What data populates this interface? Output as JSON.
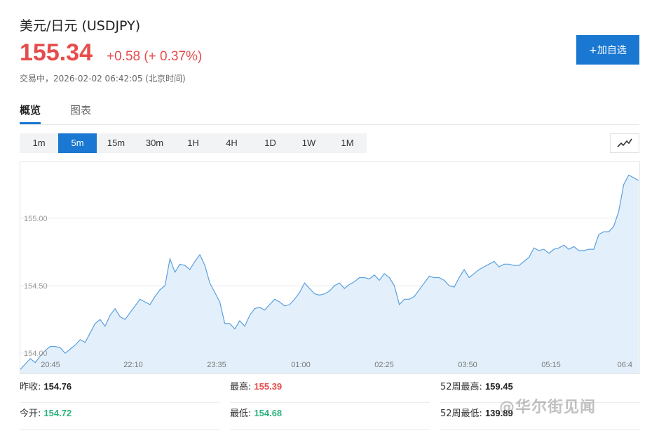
{
  "header": {
    "title": "美元/日元  (USDJPY)",
    "price": "155.34",
    "change": "+0.58 (+ 0.37%)",
    "status": "交易中，2026-02-02 06:42:05 (北京时间)",
    "watch_label": "+加自选"
  },
  "tabs": [
    {
      "label": "概览",
      "active": true
    },
    {
      "label": "图表",
      "active": false
    }
  ],
  "intervals": [
    "1m",
    "5m",
    "15m",
    "30m",
    "1H",
    "4H",
    "1D",
    "1W",
    "1M"
  ],
  "active_interval": "5m",
  "chart_type_icon": "line-chart-icon",
  "chart_data": {
    "type": "area",
    "ylim": [
      153.85,
      155.4
    ],
    "y_ticks": [
      {
        "value": 154.0,
        "label": "154.00"
      },
      {
        "value": 154.5,
        "label": "154.50"
      },
      {
        "value": 155.0,
        "label": "155.00"
      }
    ],
    "x_ticks": [
      "20:45",
      "22:10",
      "23:35",
      "01:00",
      "02:25",
      "03:50",
      "05:15",
      "06:4"
    ],
    "values": [
      153.88,
      153.92,
      153.96,
      153.93,
      153.98,
      154.02,
      154.05,
      154.05,
      154.04,
      154.0,
      154.03,
      154.06,
      154.1,
      154.08,
      154.15,
      154.22,
      154.25,
      154.2,
      154.28,
      154.33,
      154.27,
      154.25,
      154.3,
      154.35,
      154.4,
      154.38,
      154.36,
      154.42,
      154.47,
      154.5,
      154.7,
      154.6,
      154.66,
      154.65,
      154.62,
      154.68,
      154.73,
      154.65,
      154.52,
      154.45,
      154.38,
      154.22,
      154.22,
      154.18,
      154.24,
      154.2,
      154.28,
      154.33,
      154.34,
      154.32,
      154.36,
      154.4,
      154.38,
      154.35,
      154.36,
      154.4,
      154.45,
      154.52,
      154.48,
      154.44,
      154.43,
      154.44,
      154.46,
      154.5,
      154.52,
      154.48,
      154.51,
      154.53,
      154.56,
      154.56,
      154.55,
      154.58,
      154.54,
      154.59,
      154.56,
      154.5,
      154.36,
      154.4,
      154.4,
      154.42,
      154.47,
      154.52,
      154.57,
      154.56,
      154.56,
      154.54,
      154.5,
      154.49,
      154.56,
      154.62,
      154.56,
      154.59,
      154.62,
      154.64,
      154.66,
      154.68,
      154.64,
      154.66,
      154.66,
      154.65,
      154.65,
      154.68,
      154.71,
      154.78,
      154.76,
      154.77,
      154.74,
      154.77,
      154.78,
      154.8,
      154.77,
      154.79,
      154.76,
      154.76,
      154.77,
      154.77,
      154.88,
      154.9,
      154.9,
      154.94,
      155.05,
      155.25,
      155.32,
      155.3,
      155.28
    ]
  },
  "stats": {
    "prev_close": {
      "label": "昨收:",
      "value": "154.76"
    },
    "open": {
      "label": "今开:",
      "value": "154.72"
    },
    "high": {
      "label": "最高:",
      "value": "155.39"
    },
    "low": {
      "label": "最低:",
      "value": "154.68"
    },
    "wk52_high": {
      "label": "52周最高:",
      "value": "159.45"
    },
    "wk52_low": {
      "label": "52周最低:",
      "value": "139.89"
    }
  },
  "watermark": "@华尔街见闻"
}
